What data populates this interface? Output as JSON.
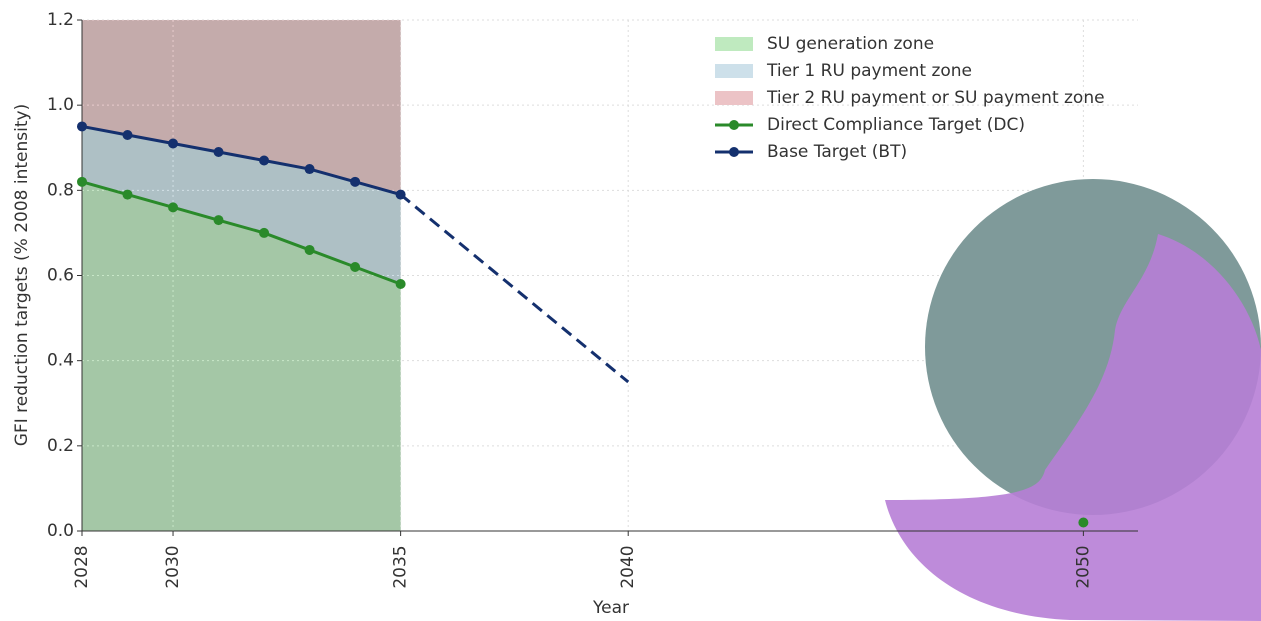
{
  "chart_data": {
    "type": "line",
    "xlabel": "Year",
    "ylabel": "GFI reduction targets (% 2008 intensity)",
    "x": [
      2028,
      2029,
      2030,
      2031,
      2032,
      2033,
      2034,
      2035,
      2040,
      2050
    ],
    "series": [
      {
        "name": "Direct Compliance Target (DC)",
        "color": "#2a8a2a",
        "values": [
          0.82,
          0.79,
          0.76,
          0.73,
          0.7,
          0.66,
          0.62,
          0.58,
          null,
          0.02
        ]
      },
      {
        "name": "Base Target (BT)",
        "color": "#14306e",
        "values": [
          0.95,
          0.93,
          0.91,
          0.89,
          0.87,
          0.85,
          0.82,
          0.79,
          0.35,
          null
        ],
        "dashed_after": 7
      }
    ],
    "zones": [
      {
        "name": "SU generation zone",
        "color": "#bfeabf"
      },
      {
        "name": "Tier 1 RU payment zone",
        "color": "#cde0ea"
      },
      {
        "name": "Tier 2 RU payment or SU payment zone",
        "color": "#ecc3c6"
      }
    ],
    "xlim": [
      2028,
      2051.2
    ],
    "ylim": [
      0,
      1.2
    ],
    "xticks": [
      2028,
      2030,
      2035,
      2040,
      2050
    ],
    "yticks": [
      {
        "value": 0,
        "label": "0.0"
      },
      0.2,
      0.4,
      0.6,
      0.8,
      {
        "value": 1,
        "label": "1.0"
      },
      1.2
    ],
    "grid": true,
    "legend": "upper right"
  }
}
